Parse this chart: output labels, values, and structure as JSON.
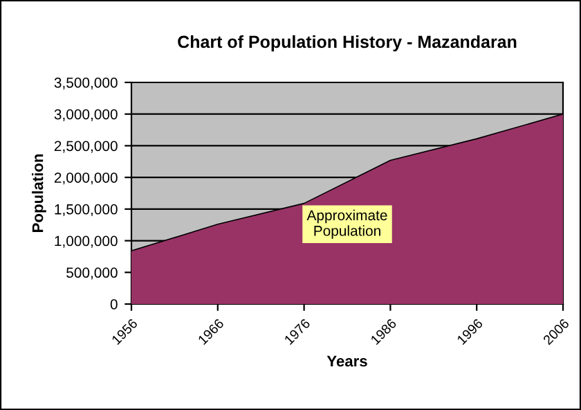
{
  "chart_data": {
    "type": "area",
    "title": "Chart of Population History - Mazandaran",
    "xlabel": "Years",
    "ylabel": "Population",
    "categories": [
      "1956",
      "1966",
      "1976",
      "1986",
      "1996",
      "2006"
    ],
    "values": [
      840000,
      1260000,
      1590000,
      2270000,
      2610000,
      3000000
    ],
    "color": "#993366",
    "ylim": [
      0,
      3500000
    ],
    "yticks": [
      {
        "value": 0,
        "label": "0"
      },
      {
        "value": 500000,
        "label": "500,000"
      },
      {
        "value": 1000000,
        "label": "1,000,000"
      },
      {
        "value": 1500000,
        "label": "1,500,000"
      },
      {
        "value": 2000000,
        "label": "2,000,000"
      },
      {
        "value": 2500000,
        "label": "2,500,000"
      },
      {
        "value": 3000000,
        "label": "3,000,000"
      },
      {
        "value": 3500000,
        "label": "3,500,000"
      }
    ],
    "grid": "y",
    "legend": false,
    "annotations": [
      "Approximate\nPopulation"
    ]
  }
}
